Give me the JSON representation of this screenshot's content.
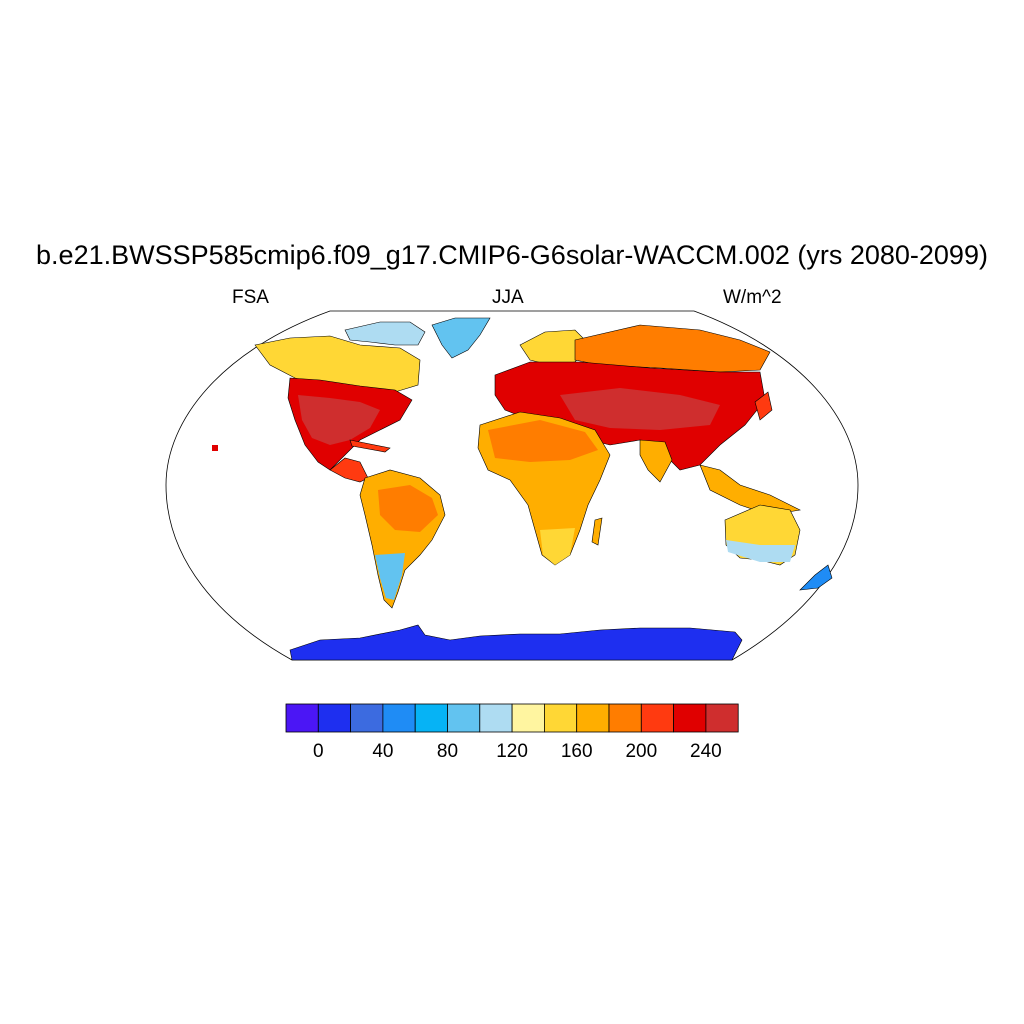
{
  "title": "b.e21.BWSSP585cmip6.f09_g17.CMIP6-G6solar-WACCM.002 (yrs 2080-2099)",
  "left_label": "FSA",
  "center_label": "JJA",
  "right_label": "W/m^2",
  "colorbar": {
    "colors": [
      "#4b16f5",
      "#1e2ff0",
      "#3c6be0",
      "#1f8cf5",
      "#06b3f5",
      "#62c3f0",
      "#aedcf2",
      "#fff5a0",
      "#ffd735",
      "#ffae00",
      "#ff7d00",
      "#ff3a10",
      "#e00000",
      "#cf2e2e"
    ],
    "tick_labels": [
      "0",
      "40",
      "80",
      "120",
      "160",
      "200",
      "240"
    ]
  },
  "chart_data": {
    "type": "heatmap",
    "projection": "Robinson",
    "variable": "FSA",
    "season": "JJA",
    "units": "W/m^2",
    "levels": [
      -20,
      0,
      20,
      40,
      60,
      80,
      100,
      120,
      140,
      160,
      180,
      200,
      220,
      240
    ],
    "regions": [
      {
        "region": "Antarctica",
        "value": 10
      },
      {
        "region": "Greenland",
        "value": 90
      },
      {
        "region": "Arctic Canada",
        "value": 150
      },
      {
        "region": "United States",
        "value": 235
      },
      {
        "region": "Mexico",
        "value": 225
      },
      {
        "region": "Amazon",
        "value": 195
      },
      {
        "region": "Southern South America",
        "value": 105
      },
      {
        "region": "Sahara",
        "value": 200
      },
      {
        "region": "Southern Africa",
        "value": 160
      },
      {
        "region": "Europe",
        "value": 225
      },
      {
        "region": "Middle East",
        "value": 245
      },
      {
        "region": "Siberia",
        "value": 195
      },
      {
        "region": "Central Asia",
        "value": 240
      },
      {
        "region": "India",
        "value": 180
      },
      {
        "region": "Southeast Asia",
        "value": 170
      },
      {
        "region": "Northern Australia",
        "value": 165
      },
      {
        "region": "Southern Australia",
        "value": 110
      },
      {
        "region": "New Zealand",
        "value": 80
      }
    ]
  }
}
